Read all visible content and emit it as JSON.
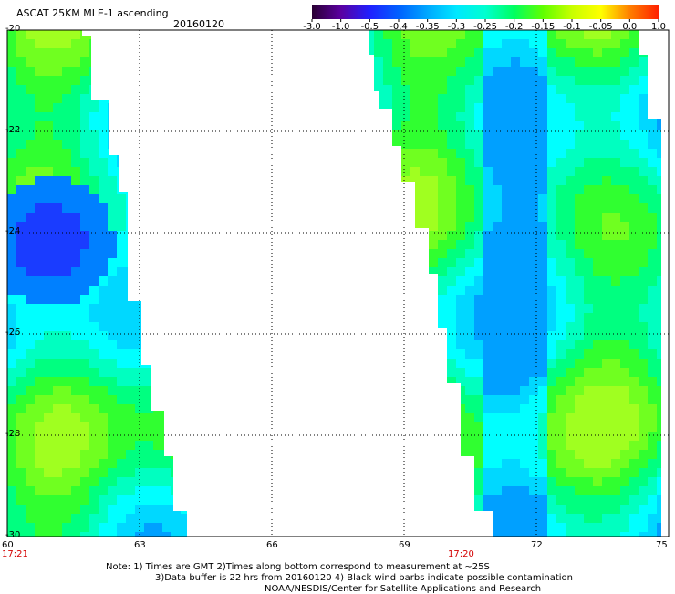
{
  "header": {
    "title": "ASCAT 25KM MLE-1 ascending",
    "date": "20160120"
  },
  "colorbar": {
    "labels": [
      "-3.0",
      "-1.0",
      "-0.5",
      "-0.4",
      "-0.35",
      "-0.3",
      "-0.25",
      "-0.2",
      "-0.15",
      "-0.1",
      "-0.05",
      "0.0",
      "1.0"
    ],
    "colors": [
      "#2a0033",
      "#5a00a0",
      "#2020ff",
      "#0060ff",
      "#00a8ff",
      "#00e8ff",
      "#00ffd0",
      "#00ff60",
      "#60ff00",
      "#c8ff00",
      "#ffff00",
      "#ff8000",
      "#ff2000"
    ]
  },
  "chart_data": {
    "type": "heatmap",
    "xlabel": "",
    "ylabel": "",
    "x_ticks": [
      "60",
      "63",
      "66",
      "69",
      "72",
      "75"
    ],
    "y_ticks": [
      "-20",
      "-22",
      "-24",
      "-26",
      "-28",
      "-30"
    ],
    "xlim": [
      60,
      75
    ],
    "ylim": [
      -30,
      -20
    ],
    "grid": true,
    "swaths": [
      {
        "lon_min": 60,
        "lon_max_north": 61.8,
        "lon_max_south": 64.0,
        "time": "17:21",
        "mle_range": [
          -0.4,
          0.0
        ]
      },
      {
        "lon_min_north": 68.3,
        "lon_min_south": 71.2,
        "lon_max": 75,
        "time": "17:20",
        "mle_range": [
          -0.3,
          0.0
        ]
      }
    ],
    "time_labels": [
      {
        "lon": 60,
        "text": "17:21"
      },
      {
        "lon": 70.2,
        "text": "17:20"
      }
    ]
  },
  "notes": {
    "line1": "Note: 1) Times are GMT 2)Times along bottom correspond to measurement at ~25S",
    "line2": "3)Data buffer is 22 hrs from 20160120 4) Black wind barbs indicate possible contamination",
    "line3": "NOAA/NESDIS/Center for Satellite Applications and Research"
  }
}
